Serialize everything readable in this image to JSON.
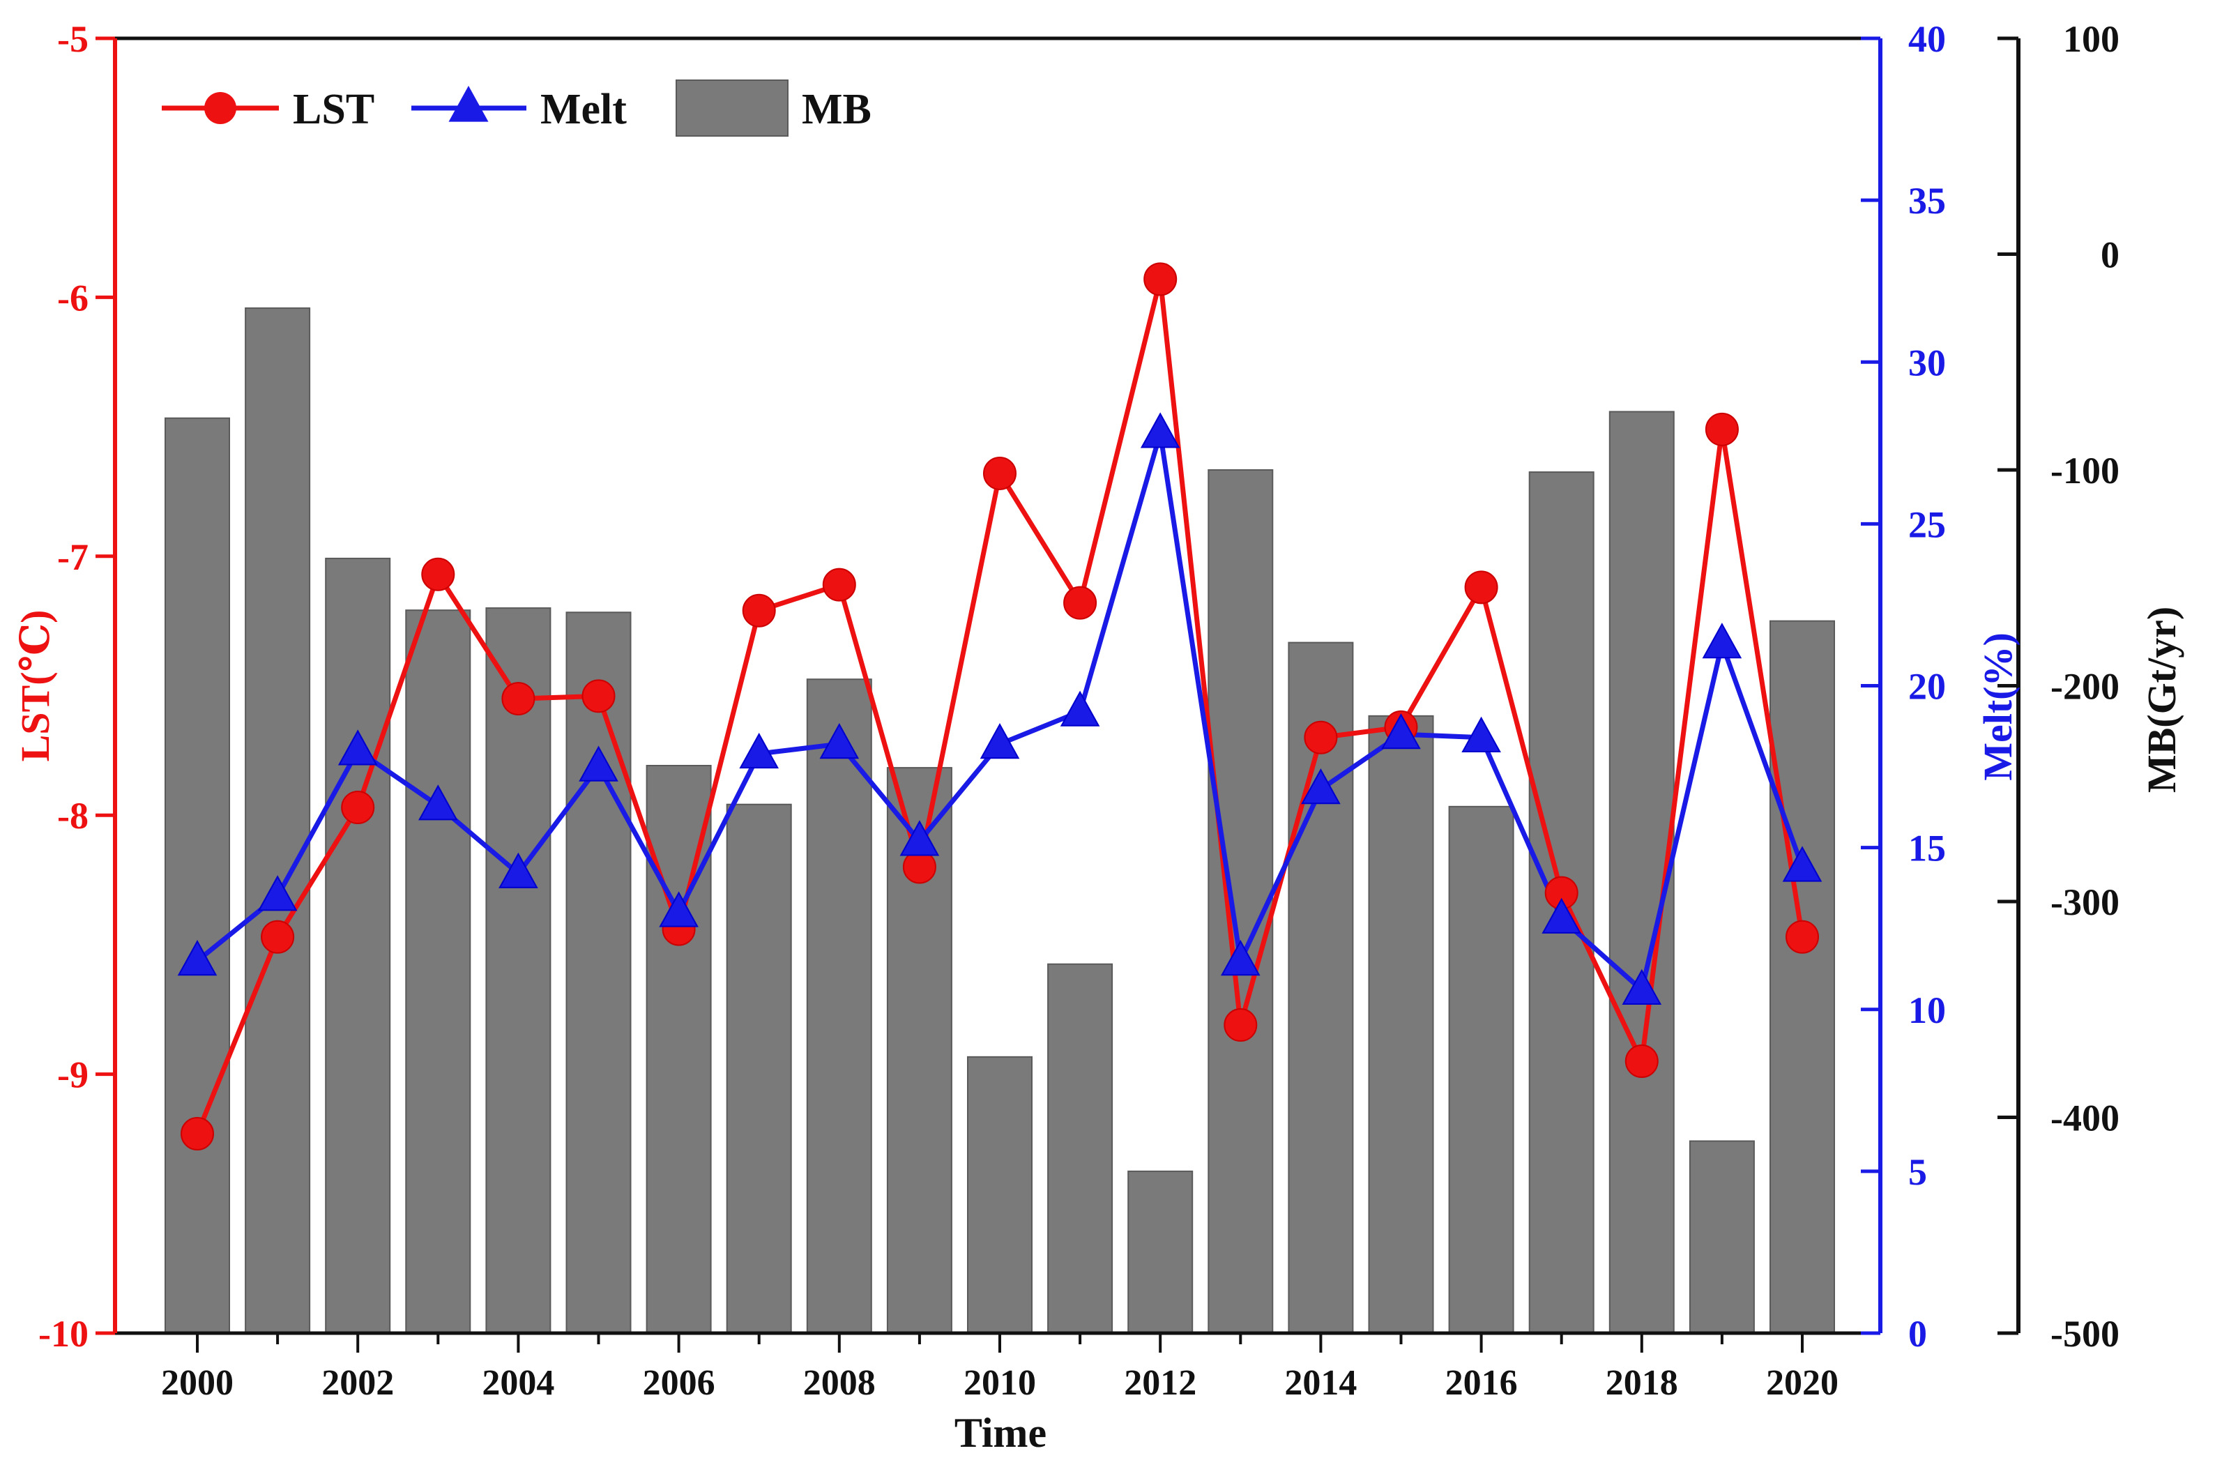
{
  "chart_data": {
    "type": "bar+line",
    "xlabel": "Time",
    "x": [
      2000,
      2001,
      2002,
      2003,
      2004,
      2005,
      2006,
      2007,
      2008,
      2009,
      2010,
      2011,
      2012,
      2013,
      2014,
      2015,
      2016,
      2017,
      2018,
      2019,
      2020
    ],
    "x_tick_labels": [
      "2000",
      "2002",
      "2004",
      "2006",
      "2008",
      "2010",
      "2012",
      "2014",
      "2016",
      "2018",
      "2020"
    ],
    "series": [
      {
        "name": "MB",
        "kind": "bar",
        "axis": "mb",
        "color": "#7a7a7a",
        "values": [
          -76,
          -25,
          -141,
          -165,
          -164,
          -166,
          -237,
          -255,
          -197,
          -238,
          -372,
          -329,
          -425,
          -100,
          -180,
          -214,
          -256,
          -101,
          -73,
          -411,
          -170
        ]
      },
      {
        "name": "LST",
        "kind": "line",
        "axis": "lst",
        "color": "#ee1111",
        "marker": "circle",
        "values": [
          -9.23,
          -8.47,
          -7.97,
          -7.07,
          -7.55,
          -7.54,
          -8.44,
          -7.21,
          -7.11,
          -8.2,
          -6.68,
          -7.18,
          -5.93,
          -8.81,
          -7.7,
          -7.66,
          -7.12,
          -8.3,
          -8.95,
          -6.51,
          -8.47
        ]
      },
      {
        "name": "Melt",
        "kind": "line",
        "axis": "melt",
        "color": "#1a1ae6",
        "marker": "triangle",
        "values": [
          11.5,
          13.5,
          18,
          16.3,
          14.2,
          17.5,
          13,
          17.9,
          18.2,
          15.2,
          18.2,
          19.2,
          27.8,
          11.5,
          16.8,
          18.5,
          18.4,
          12.8,
          10.6,
          21.3,
          14.4
        ]
      }
    ],
    "axes": {
      "lst": {
        "label": "LST(℃)",
        "min": -10,
        "max": -5,
        "ticks": [
          -10,
          -9,
          -8,
          -7,
          -6,
          -5
        ],
        "tick_labels": [
          "-10",
          "-9",
          "-8",
          "-7",
          "-6",
          "-5"
        ],
        "color": "#ee1111",
        "side": "left"
      },
      "melt": {
        "label": "Melt(%)",
        "min": 0,
        "max": 40,
        "ticks": [
          0,
          5,
          10,
          15,
          20,
          25,
          30,
          35,
          40
        ],
        "tick_labels": [
          "0",
          "5",
          "10",
          "15",
          "20",
          "25",
          "30",
          "35",
          "40"
        ],
        "color": "#1a1ae6",
        "side": "right"
      },
      "mb": {
        "label": "MB(Gt/yr)",
        "min": -500,
        "max": 100,
        "ticks": [
          -500,
          -400,
          -300,
          -200,
          -100,
          0,
          100
        ],
        "tick_labels": [
          "-500",
          "-400",
          "-300",
          "-200",
          "-100",
          "0",
          "100"
        ],
        "color": "#111111",
        "side": "far-right"
      }
    },
    "legend": {
      "position": "top-left",
      "entries": [
        "LST",
        "Melt",
        "MB"
      ]
    },
    "grid": false
  }
}
